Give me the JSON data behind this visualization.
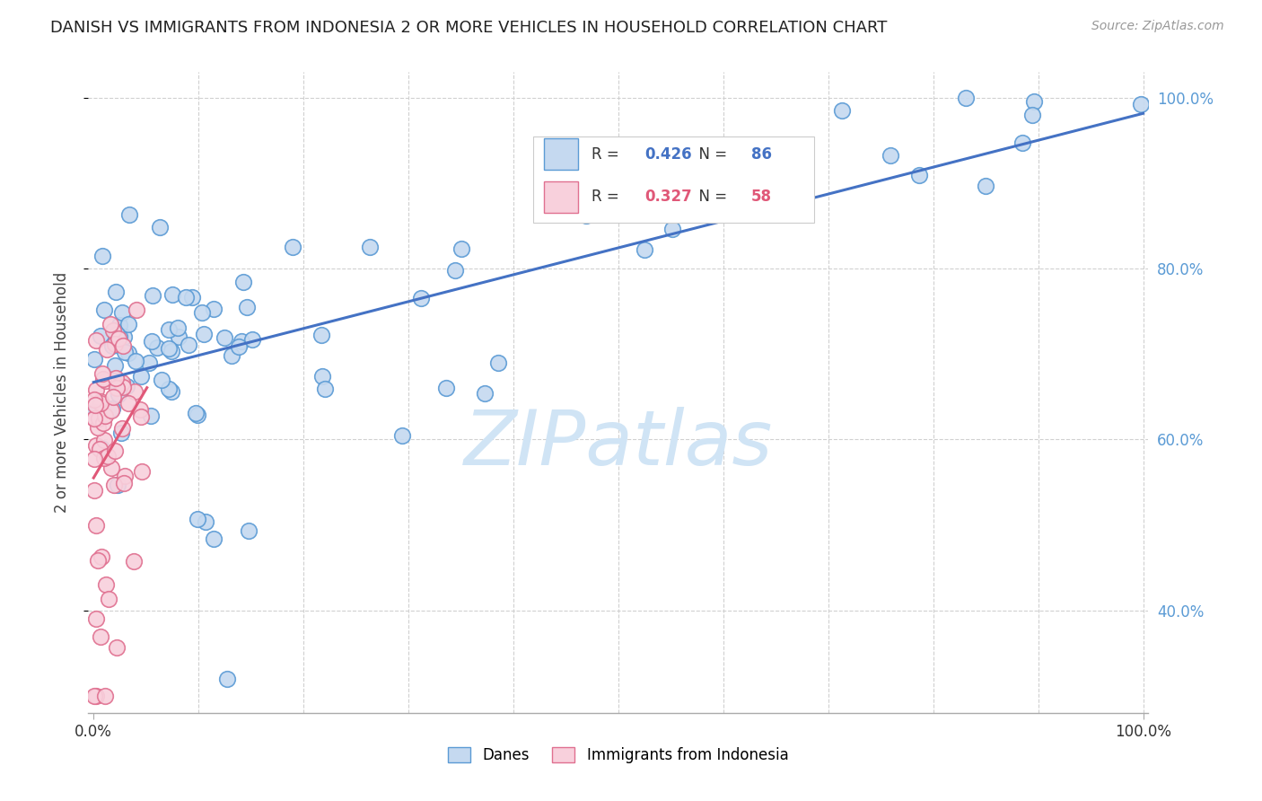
{
  "title": "DANISH VS IMMIGRANTS FROM INDONESIA 2 OR MORE VEHICLES IN HOUSEHOLD CORRELATION CHART",
  "source": "Source: ZipAtlas.com",
  "ylabel": "2 or more Vehicles in Household",
  "R_danes": 0.426,
  "N_danes": 86,
  "R_indonesia": 0.327,
  "N_indonesia": 58,
  "danes_face_color": "#c5d9f0",
  "danes_edge_color": "#5b9bd5",
  "indonesia_face_color": "#f8d0dc",
  "indonesia_edge_color": "#e07090",
  "danes_line_color": "#4472c4",
  "indonesia_line_color": "#e05878",
  "watermark_color": "#d0e4f5",
  "grid_color": "#d0d0d0",
  "right_tick_color": "#5b9bd5",
  "title_color": "#222222",
  "source_color": "#999999",
  "xlim": [
    0.0,
    1.0
  ],
  "ylim": [
    0.28,
    1.03
  ],
  "ytick_positions": [
    0.4,
    0.6,
    0.8,
    1.0
  ],
  "ytick_labels": [
    "40.0%",
    "60.0%",
    "80.0%",
    "100.0%"
  ],
  "xtick_positions": [
    0.0,
    1.0
  ],
  "xtick_labels": [
    "0.0%",
    "100.0%"
  ]
}
